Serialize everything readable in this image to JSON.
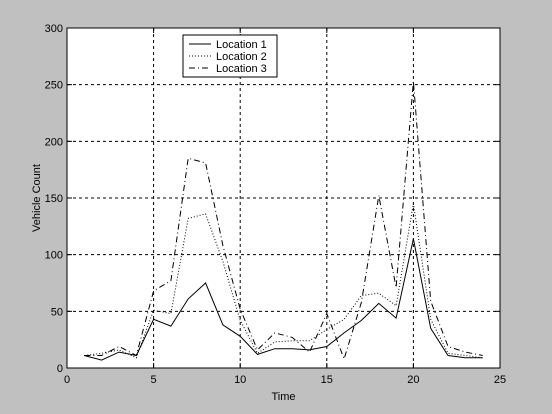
{
  "colors": {
    "figure_background": "#c0c0c0",
    "plot_background": "#ffffff",
    "line": "#000000",
    "grid": "#000000"
  },
  "chart_data": {
    "type": "line",
    "title": "",
    "xlabel": "Time",
    "ylabel": "Vehicle Count",
    "xlim": [
      0,
      25
    ],
    "ylim": [
      0,
      300
    ],
    "xticks": [
      0,
      5,
      10,
      15,
      20,
      25
    ],
    "yticks": [
      0,
      50,
      100,
      150,
      200,
      250,
      300
    ],
    "grid": true,
    "grid_style": "dashed",
    "legend_position": "upper-left-center",
    "x": [
      1,
      2,
      3,
      4,
      5,
      6,
      7,
      8,
      9,
      10,
      11,
      12,
      13,
      14,
      15,
      16,
      17,
      18,
      19,
      20,
      21,
      22,
      23,
      24
    ],
    "series": [
      {
        "name": "Location 1",
        "line_style": "solid",
        "values": [
          11,
          7,
          14,
          11,
          43,
          37,
          61,
          75,
          38,
          28,
          12,
          17,
          17,
          16,
          19,
          31,
          42,
          57,
          44,
          114,
          35,
          11,
          9,
          9
        ]
      },
      {
        "name": "Location 2",
        "line_style": "dotted",
        "values": [
          11,
          13,
          16,
          9,
          51,
          48,
          132,
          136,
          94,
          42,
          13,
          23,
          24,
          24,
          34,
          43,
          64,
          66,
          55,
          145,
          43,
          13,
          11,
          9
        ]
      },
      {
        "name": "Location 3",
        "line_style": "dashdot",
        "values": [
          11,
          11,
          19,
          11,
          68,
          77,
          185,
          181,
          108,
          52,
          16,
          31,
          27,
          14,
          48,
          8,
          58,
          152,
          71,
          253,
          59,
          19,
          14,
          11
        ]
      }
    ]
  }
}
